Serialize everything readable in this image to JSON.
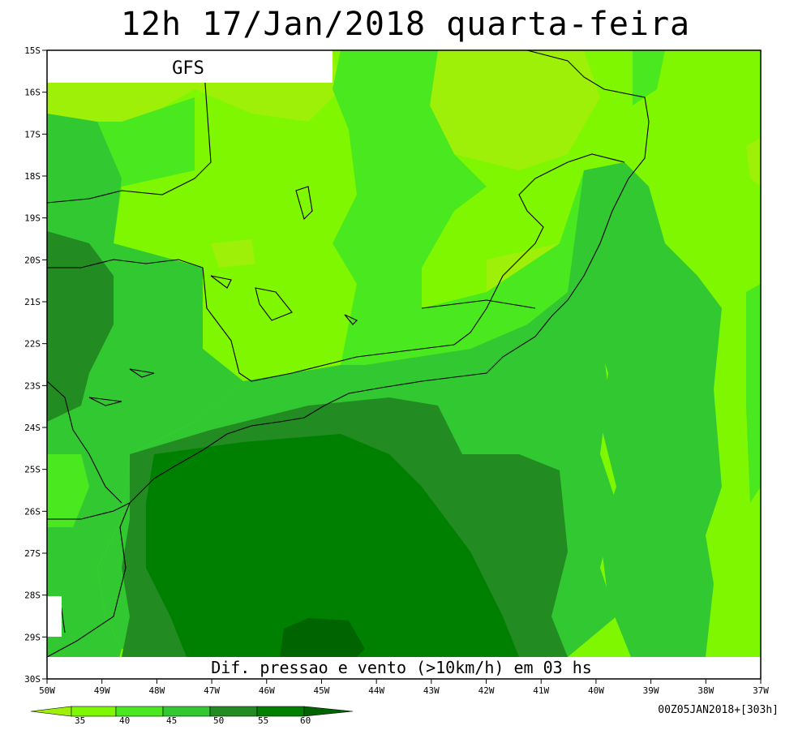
{
  "header": {
    "title": "12h 17/Jan/2018 quarta-feira"
  },
  "map": {
    "model_label": "GFS",
    "caption": "Dif. pressao e vento (>10km/h) em 03 hs",
    "lat_labels": [
      "15S",
      "16S",
      "17S",
      "18S",
      "19S",
      "20S",
      "21S",
      "22S",
      "23S",
      "24S",
      "25S",
      "26S",
      "27S",
      "28S",
      "29S",
      "30S"
    ],
    "lon_labels": [
      "50W",
      "49W",
      "48W",
      "47W",
      "46W",
      "45W",
      "44W",
      "43W",
      "42W",
      "41W",
      "40W",
      "39W",
      "38W",
      "37W"
    ],
    "colors": {
      "lvl35": "#9ef009",
      "lvl40": "#7ef700",
      "lvl45": "#4ae81e",
      "lvl50": "#32c832",
      "lvl55": "#228b22",
      "lvl60": "#008000",
      "lvl65": "#006400",
      "coastline": "#000000"
    }
  },
  "legend": {
    "values": [
      "35",
      "40",
      "45",
      "50",
      "55",
      "60"
    ]
  },
  "footer": {
    "run_info": "00Z05JAN2018+[303h]"
  }
}
